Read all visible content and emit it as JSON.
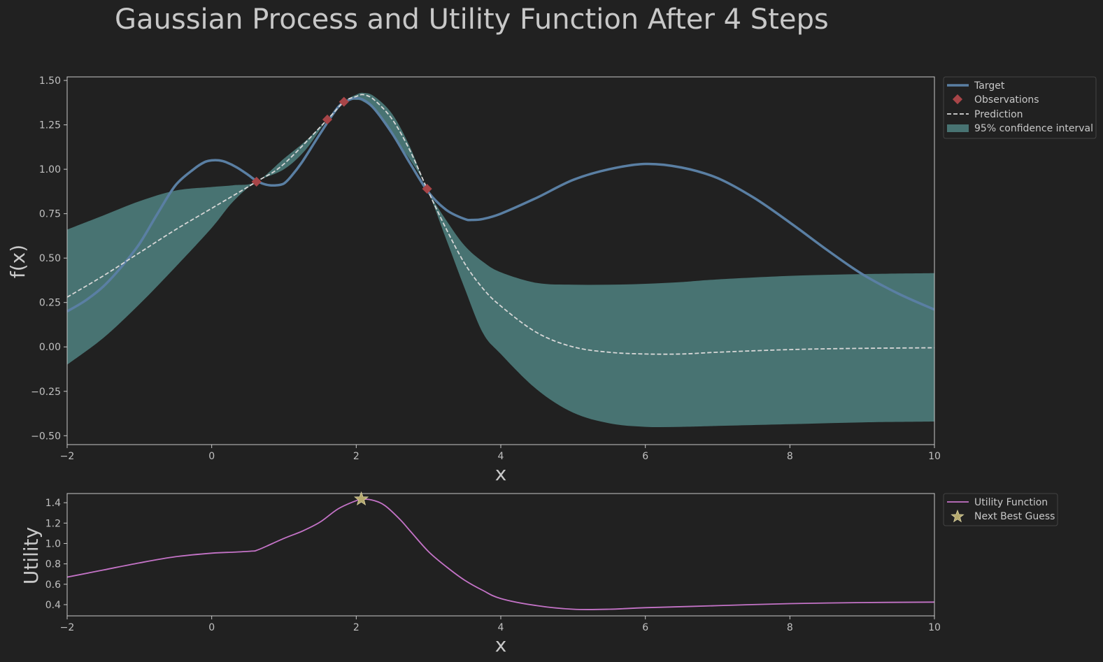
{
  "figure": {
    "title": "Gaussian Process and Utility Function After 4 Steps",
    "background": "#212121"
  },
  "colors": {
    "target": "#5a7fa3",
    "observations": "#a84548",
    "prediction": "#d7d7d7",
    "confidence": "#487372",
    "utility": "#c473c7",
    "next_guess": "#b5a96e",
    "axes_edge": "#c8c8c8",
    "text": "#c8c8c8"
  },
  "chart_data": [
    {
      "type": "line",
      "xlabel": "x",
      "ylabel": "f(x)",
      "xlim": [
        -2,
        10
      ],
      "ylim": [
        -0.55,
        1.52
      ],
      "xticks": [
        -2,
        0,
        2,
        4,
        6,
        8,
        10
      ],
      "yticks": [
        -0.5,
        -0.25,
        0.0,
        0.25,
        0.5,
        0.75,
        1.0,
        1.25,
        1.5
      ],
      "ytick_labels": [
        "−0.50",
        "−0.25",
        "0.00",
        "0.25",
        "0.50",
        "0.75",
        "1.00",
        "1.25",
        "1.50"
      ],
      "xtick_labels": [
        "−2",
        "0",
        "2",
        "4",
        "6",
        "8",
        "10"
      ],
      "legend": {
        "placement": "outside-top-right",
        "entries": [
          "Target",
          "Observations",
          "Prediction",
          "95% confidence interval"
        ]
      },
      "series": [
        {
          "name": "Target",
          "style": "solid",
          "x": [
            -2.0,
            -1.75,
            -1.5,
            -1.25,
            -1.0,
            -0.75,
            -0.5,
            -0.25,
            -0.1,
            0.0,
            0.1,
            0.2,
            0.35,
            0.5,
            0.6,
            0.7,
            0.8,
            0.9,
            1.0,
            1.1,
            1.25,
            1.5,
            1.75,
            1.9,
            2.0,
            2.1,
            2.25,
            2.5,
            2.75,
            3.0,
            3.25,
            3.5,
            3.6,
            3.75,
            4.0,
            4.5,
            5.0,
            5.5,
            6.0,
            6.5,
            7.0,
            7.5,
            8.0,
            8.5,
            9.0,
            9.5,
            10.0
          ],
          "y": [
            0.2,
            0.26,
            0.34,
            0.45,
            0.58,
            0.75,
            0.91,
            1.0,
            1.04,
            1.05,
            1.05,
            1.04,
            1.01,
            0.97,
            0.94,
            0.92,
            0.91,
            0.91,
            0.92,
            0.96,
            1.04,
            1.2,
            1.35,
            1.39,
            1.4,
            1.39,
            1.34,
            1.2,
            1.03,
            0.87,
            0.77,
            0.72,
            0.715,
            0.72,
            0.75,
            0.84,
            0.94,
            1.0,
            1.03,
            1.01,
            0.95,
            0.84,
            0.7,
            0.55,
            0.41,
            0.3,
            0.21
          ]
        },
        {
          "name": "Observations",
          "style": "markers",
          "x": [
            0.62,
            1.6,
            1.83,
            2.98
          ],
          "y": [
            0.93,
            1.28,
            1.38,
            0.89
          ]
        },
        {
          "name": "Prediction",
          "style": "dashed",
          "x": [
            -2.0,
            -1.5,
            -1.0,
            -0.5,
            0.0,
            0.62,
            1.0,
            1.6,
            1.83,
            2.0,
            2.1,
            2.25,
            2.5,
            2.75,
            2.98,
            3.25,
            3.5,
            3.75,
            4.0,
            4.5,
            5.0,
            5.5,
            6.0,
            6.5,
            7.0,
            8.0,
            9.0,
            10.0
          ],
          "y": [
            0.28,
            0.4,
            0.53,
            0.66,
            0.78,
            0.93,
            1.03,
            1.28,
            1.38,
            1.41,
            1.42,
            1.39,
            1.28,
            1.1,
            0.89,
            0.66,
            0.47,
            0.33,
            0.23,
            0.08,
            0.0,
            -0.03,
            -0.04,
            -0.04,
            -0.03,
            -0.015,
            -0.008,
            -0.005
          ]
        },
        {
          "name": "95% confidence interval",
          "style": "band",
          "x": [
            -2.0,
            -1.5,
            -1.0,
            -0.5,
            0.0,
            0.3,
            0.62,
            1.0,
            1.3,
            1.6,
            1.83,
            2.0,
            2.1,
            2.25,
            2.5,
            2.75,
            2.98,
            3.25,
            3.5,
            3.75,
            4.0,
            4.5,
            5.0,
            5.5,
            6.0,
            6.5,
            7.0,
            8.0,
            9.0,
            10.0
          ],
          "upper": [
            0.66,
            0.74,
            0.82,
            0.88,
            0.9,
            0.91,
            0.93,
            1.06,
            1.16,
            1.28,
            1.38,
            1.42,
            1.43,
            1.41,
            1.31,
            1.12,
            0.89,
            0.71,
            0.57,
            0.48,
            0.42,
            0.36,
            0.35,
            0.35,
            0.355,
            0.365,
            0.38,
            0.4,
            0.41,
            0.415
          ],
          "lower": [
            -0.1,
            0.05,
            0.24,
            0.45,
            0.67,
            0.82,
            0.93,
            1.0,
            1.11,
            1.28,
            1.38,
            1.39,
            1.38,
            1.33,
            1.19,
            1.05,
            0.89,
            0.6,
            0.33,
            0.08,
            -0.04,
            -0.24,
            -0.37,
            -0.43,
            -0.45,
            -0.45,
            -0.445,
            -0.435,
            -0.425,
            -0.42
          ]
        }
      ]
    },
    {
      "type": "line",
      "xlabel": "x",
      "ylabel": "Utility",
      "xlim": [
        -2,
        10
      ],
      "ylim": [
        0.29,
        1.49
      ],
      "xticks": [
        -2,
        0,
        2,
        4,
        6,
        8,
        10
      ],
      "yticks": [
        0.4,
        0.6,
        0.8,
        1.0,
        1.2,
        1.4
      ],
      "ytick_labels": [
        "0.4",
        "0.6",
        "0.8",
        "1.0",
        "1.2",
        "1.4"
      ],
      "xtick_labels": [
        "−2",
        "0",
        "2",
        "4",
        "6",
        "8",
        "10"
      ],
      "legend": {
        "placement": "outside-top-right",
        "entries": [
          "Utility Function",
          "Next Best Guess"
        ]
      },
      "series": [
        {
          "name": "Utility Function",
          "style": "solid",
          "x": [
            -2.0,
            -1.5,
            -1.0,
            -0.5,
            0.0,
            0.3,
            0.55,
            0.65,
            1.0,
            1.25,
            1.5,
            1.75,
            2.0,
            2.1,
            2.25,
            2.4,
            2.6,
            2.75,
            3.0,
            3.25,
            3.5,
            3.75,
            4.0,
            4.5,
            5.0,
            5.5,
            6.0,
            7.0,
            8.0,
            9.0,
            10.0
          ],
          "y": [
            0.67,
            0.74,
            0.81,
            0.87,
            0.905,
            0.915,
            0.925,
            0.94,
            1.05,
            1.12,
            1.21,
            1.34,
            1.42,
            1.435,
            1.42,
            1.37,
            1.24,
            1.12,
            0.92,
            0.77,
            0.64,
            0.54,
            0.46,
            0.39,
            0.355,
            0.355,
            0.37,
            0.39,
            0.41,
            0.42,
            0.425
          ]
        },
        {
          "name": "Next Best Guess",
          "style": "star",
          "x": [
            2.07
          ],
          "y": [
            1.435
          ]
        }
      ]
    }
  ]
}
